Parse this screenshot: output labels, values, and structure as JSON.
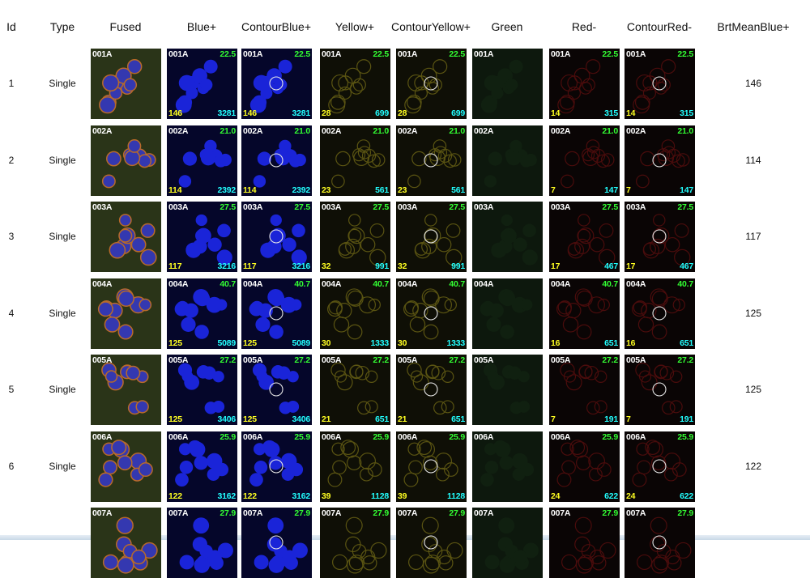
{
  "table": {
    "headers": [
      "Id",
      "Type",
      "Fused",
      "Blue+",
      "ContourBlue+",
      "Yellow+",
      "ContourYellow+",
      "Green",
      "Red-",
      "ContourRed-",
      "BrtMeanBlue+"
    ],
    "rows": [
      {
        "id": "1",
        "type": "Single",
        "sample": "001A",
        "area": "22.5",
        "blue": "146",
        "blue_area": "3281",
        "yellow": "28",
        "yellow_area": "699",
        "red": "14",
        "red_area": "315",
        "brt": "146"
      },
      {
        "id": "2",
        "type": "Single",
        "sample": "002A",
        "area": "21.0",
        "blue": "114",
        "blue_area": "2392",
        "yellow": "23",
        "yellow_area": "561",
        "red": "7",
        "red_area": "147",
        "brt": "114"
      },
      {
        "id": "3",
        "type": "Single",
        "sample": "003A",
        "area": "27.5",
        "blue": "117",
        "blue_area": "3216",
        "yellow": "32",
        "yellow_area": "991",
        "red": "17",
        "red_area": "467",
        "brt": "117"
      },
      {
        "id": "4",
        "type": "Single",
        "sample": "004A",
        "area": "40.7",
        "blue": "125",
        "blue_area": "5089",
        "yellow": "30",
        "yellow_area": "1333",
        "red": "16",
        "red_area": "651",
        "brt": "125"
      },
      {
        "id": "5",
        "type": "Single",
        "sample": "005A",
        "area": "27.2",
        "blue": "125",
        "blue_area": "3406",
        "yellow": "21",
        "yellow_area": "651",
        "red": "7",
        "red_area": "191",
        "brt": "125"
      },
      {
        "id": "6",
        "type": "Single",
        "sample": "006A",
        "area": "25.9",
        "blue": "122",
        "blue_area": "3162",
        "yellow": "39",
        "yellow_area": "1128",
        "red": "24",
        "red_area": "622",
        "brt": "122"
      },
      {
        "sample": "007A",
        "area": "27.9"
      }
    ]
  }
}
